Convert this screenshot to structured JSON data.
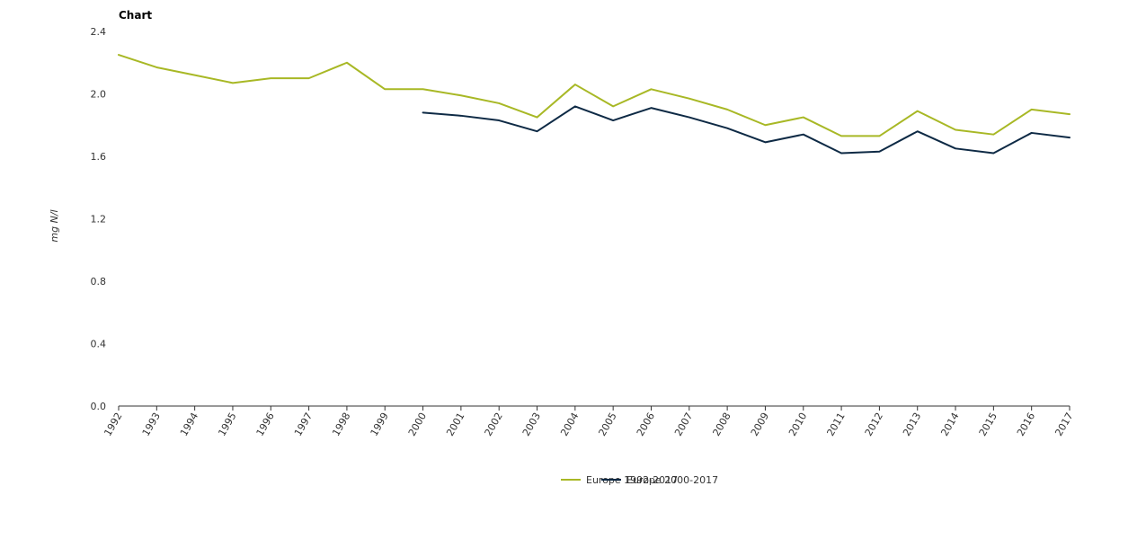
{
  "chart_data": {
    "type": "line",
    "title": "Chart",
    "xlabel": "",
    "ylabel": "mg N/l",
    "ylim": [
      0,
      2.4
    ],
    "yticks": [
      "0.0",
      "0.4",
      "0.8",
      "1.2",
      "1.6",
      "2.0",
      "2.4"
    ],
    "grid": false,
    "legend_position": "bottom",
    "x": [
      "1992",
      "1993",
      "1994",
      "1995",
      "1996",
      "1997",
      "1998",
      "1999",
      "2000",
      "2001",
      "2002",
      "2003",
      "2004",
      "2005",
      "2006",
      "2007",
      "2008",
      "2009",
      "2010",
      "2011",
      "2012",
      "2013",
      "2014",
      "2015",
      "2016",
      "2017"
    ],
    "series": [
      {
        "name": "Europe 1992-2017",
        "color": "#a8b825",
        "values": [
          2.25,
          2.17,
          2.12,
          2.07,
          2.1,
          2.1,
          2.2,
          2.03,
          2.03,
          1.99,
          1.94,
          1.85,
          2.06,
          1.92,
          2.03,
          1.97,
          1.9,
          1.8,
          1.85,
          1.73,
          1.73,
          1.89,
          1.77,
          1.74,
          1.9,
          1.87
        ]
      },
      {
        "name": "Europe 2000-2017",
        "color": "#0e2a45",
        "values": [
          null,
          null,
          null,
          null,
          null,
          null,
          null,
          null,
          1.88,
          1.86,
          1.83,
          1.76,
          1.92,
          1.83,
          1.91,
          1.85,
          1.78,
          1.69,
          1.74,
          1.62,
          1.63,
          1.76,
          1.65,
          1.62,
          1.75,
          1.72
        ]
      }
    ]
  }
}
